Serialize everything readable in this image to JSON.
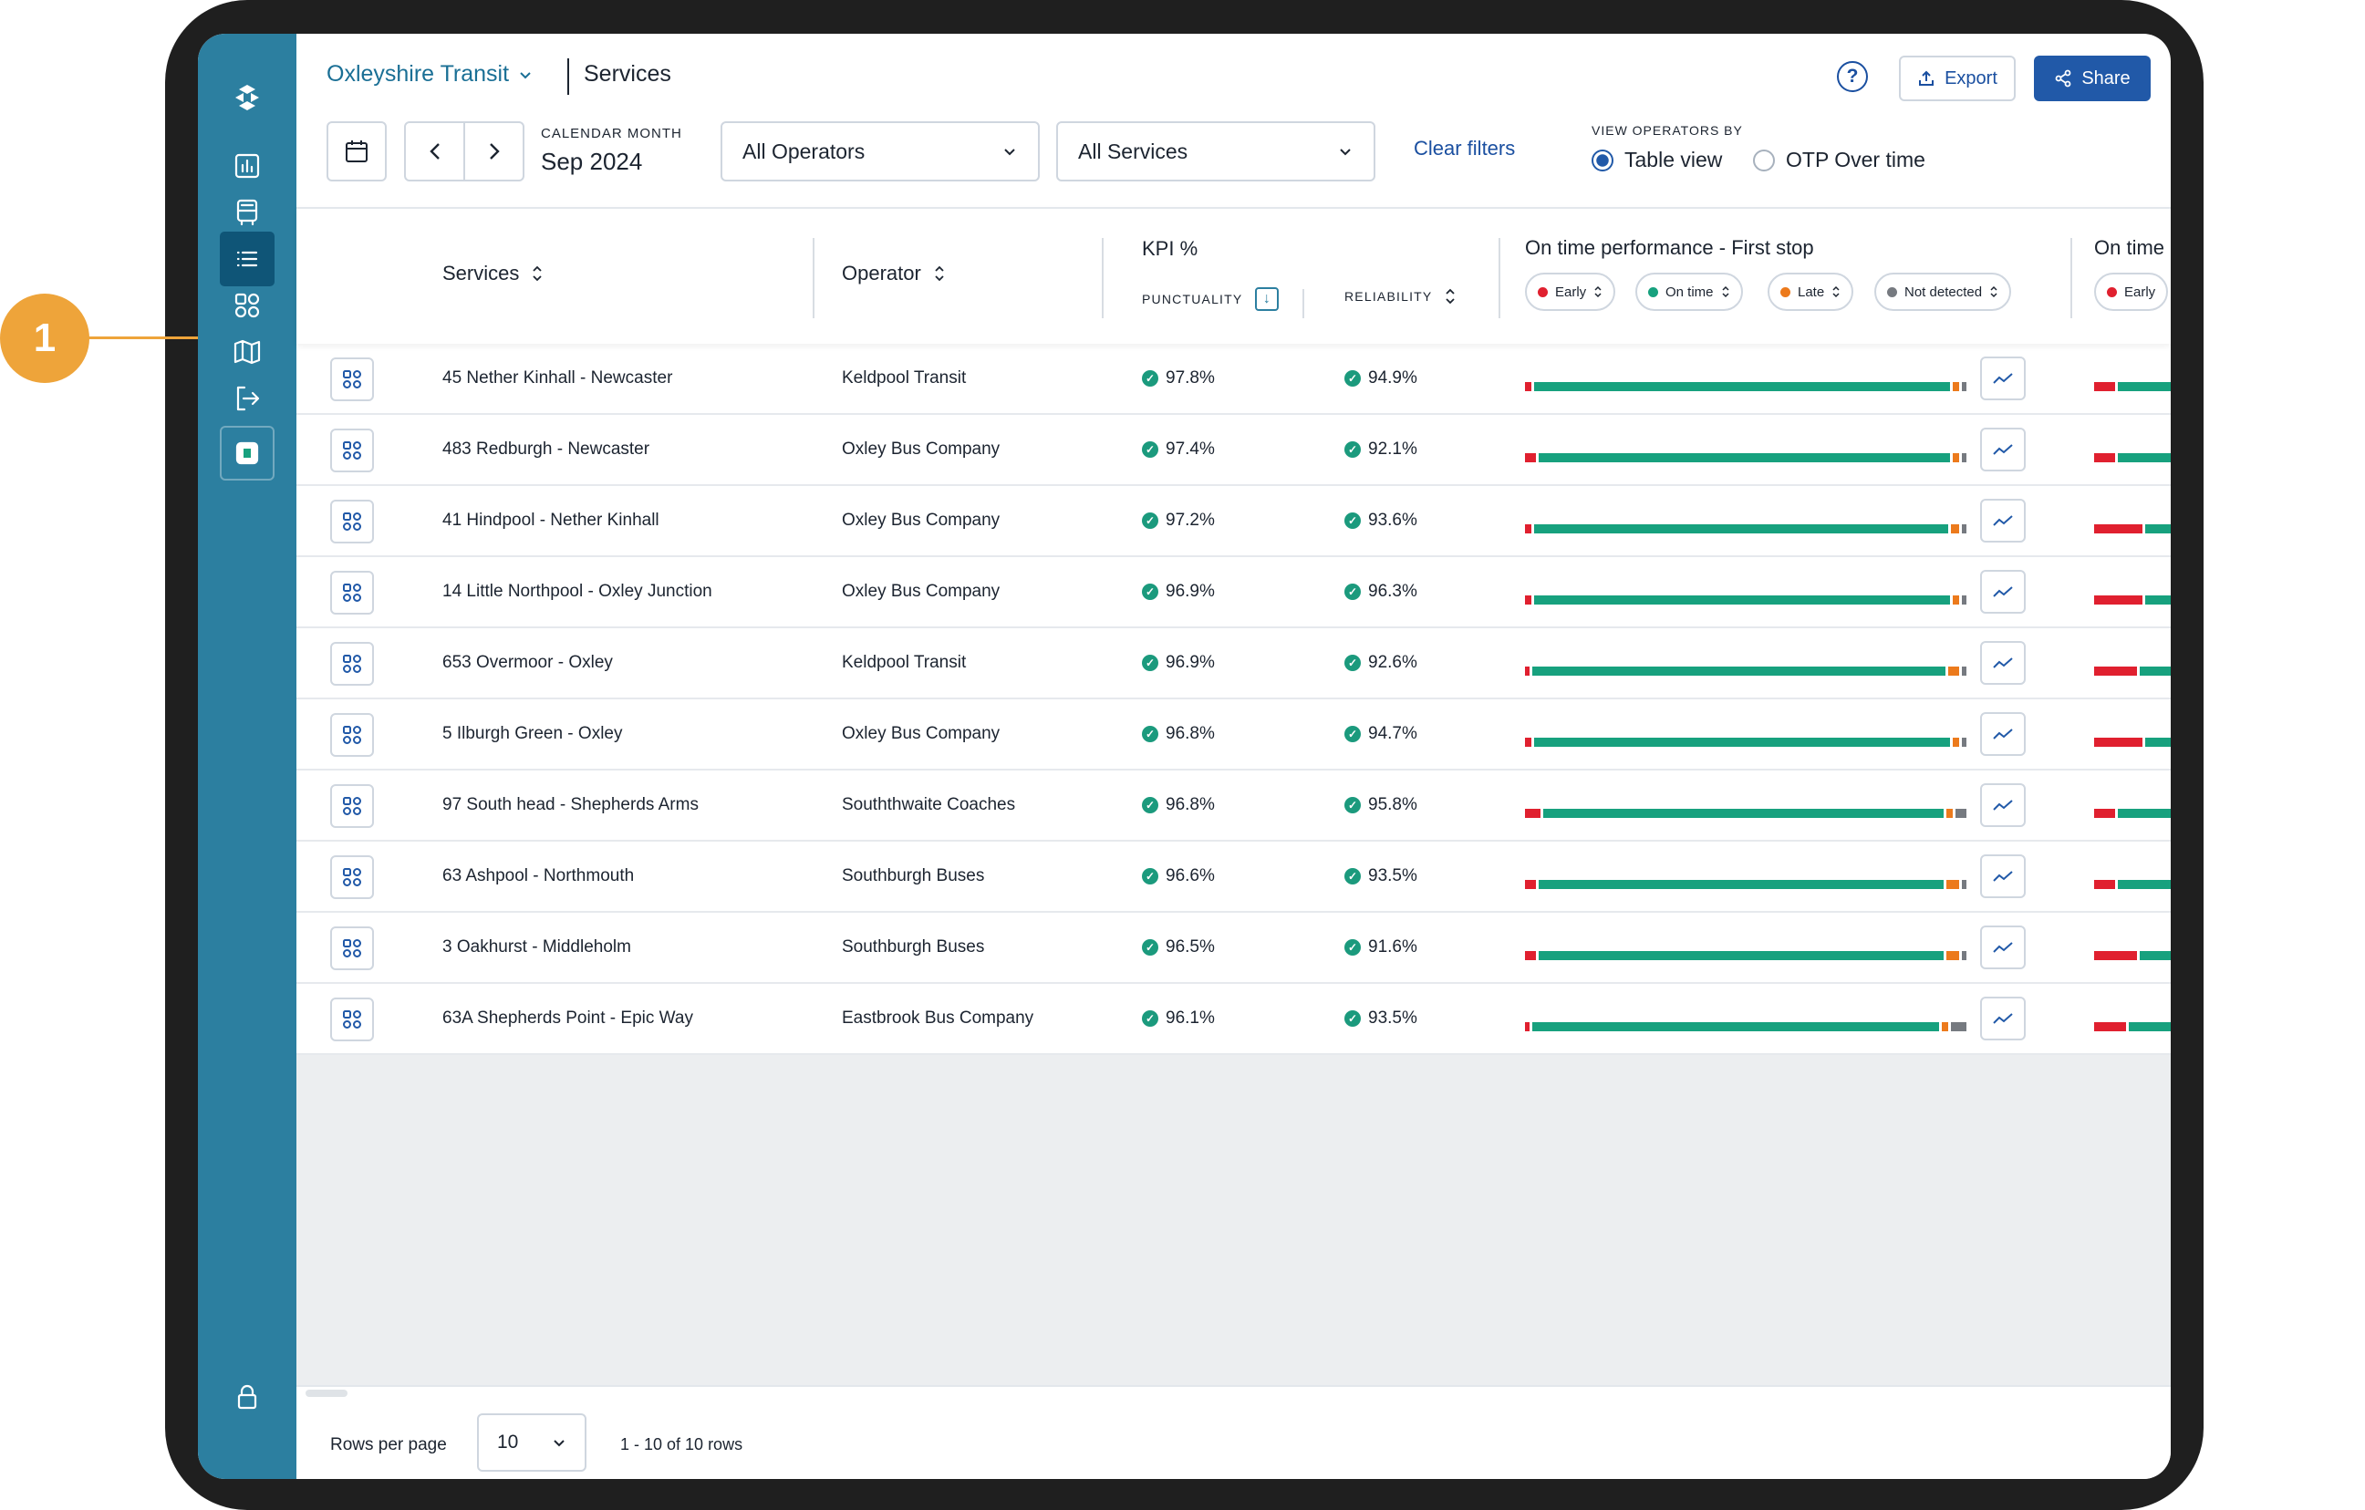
{
  "callout": "1",
  "header": {
    "org": "Oxleyshire Transit",
    "page_title": "Services",
    "help": "?",
    "export_label": "Export",
    "share_label": "Share"
  },
  "filters": {
    "calendar_label": "CALENDAR MONTH",
    "calendar_value": "Sep 2024",
    "operators": "All Operators",
    "services": "All Services",
    "clear": "Clear filters",
    "view_label": "VIEW OPERATORS BY",
    "view_options": [
      "Table view",
      "OTP Over time"
    ],
    "view_selected": "Table view"
  },
  "columns": {
    "services": "Services",
    "operator": "Operator",
    "kpi": "KPI %",
    "punctuality": "PUNCTUALITY",
    "reliability": "RELIABILITY",
    "otp_first": "On time performance - First stop",
    "otp_next": "On time"
  },
  "chips": {
    "early": "Early",
    "on_time": "On time",
    "late": "Late",
    "not_detected": "Not detected"
  },
  "colors": {
    "early": "#e0202f",
    "on_time": "#17a17e",
    "late": "#ec7a1c",
    "not_detected": "#767a80",
    "sidebar": "#2c7fa0",
    "accent": "#2159a8",
    "callout": "#eea43a"
  },
  "rows": [
    {
      "service": "45 Nether Kinhall - Newcaster",
      "operator": "Keldpool Transit",
      "punctuality": "97.8%",
      "reliability": "94.9%"
    },
    {
      "service": "483 Redburgh - Newcaster",
      "operator": "Oxley Bus Company",
      "punctuality": "97.4%",
      "reliability": "92.1%"
    },
    {
      "service": "41 Hindpool - Nether Kinhall",
      "operator": "Oxley Bus Company",
      "punctuality": "97.2%",
      "reliability": "93.6%"
    },
    {
      "service": "14 Little Northpool - Oxley Junction",
      "operator": "Oxley Bus Company",
      "punctuality": "96.9%",
      "reliability": "96.3%"
    },
    {
      "service": "653 Overmoor - Oxley",
      "operator": "Keldpool Transit",
      "punctuality": "96.9%",
      "reliability": "92.6%"
    },
    {
      "service": "5 Ilburgh Green - Oxley",
      "operator": "Oxley Bus Company",
      "punctuality": "96.8%",
      "reliability": "94.7%"
    },
    {
      "service": "97 South head - Shepherds Arms",
      "operator": "Souththwaite Coaches",
      "punctuality": "96.8%",
      "reliability": "95.8%"
    },
    {
      "service": "63 Ashpool - Northmouth",
      "operator": "Southburgh Buses",
      "punctuality": "96.6%",
      "reliability": "93.5%"
    },
    {
      "service": "3 Oakhurst - Middleholm",
      "operator": "Southburgh Buses",
      "punctuality": "96.5%",
      "reliability": "91.6%"
    },
    {
      "service": "63A Shepherds Point - Epic Way",
      "operator": "Eastbrook Bus Company",
      "punctuality": "96.1%",
      "reliability": "93.5%"
    }
  ],
  "footer": {
    "rows_per_page_label": "Rows per page",
    "rows_per_page": "10",
    "range": "1 - 10 of 10 rows"
  }
}
